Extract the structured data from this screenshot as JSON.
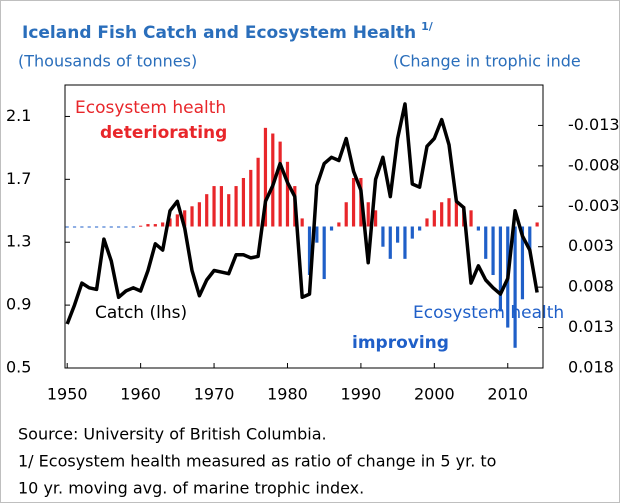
{
  "chart_data": {
    "type": "bar_line",
    "title": "Iceland Fish Catch and Ecosystem Health",
    "title_note": "1/",
    "subtitle_left": "(Thousands of tonnes)",
    "subtitle_right": "(Change in trophic inde",
    "x": [
      1950,
      1951,
      1952,
      1953,
      1954,
      1955,
      1956,
      1957,
      1958,
      1959,
      1960,
      1961,
      1962,
      1963,
      1964,
      1965,
      1966,
      1967,
      1968,
      1969,
      1970,
      1971,
      1972,
      1973,
      1974,
      1975,
      1976,
      1977,
      1978,
      1979,
      1980,
      1981,
      1982,
      1983,
      1984,
      1985,
      1986,
      1987,
      1988,
      1989,
      1990,
      1991,
      1992,
      1993,
      1994,
      1995,
      1996,
      1997,
      1998,
      1999,
      2000,
      2001,
      2002,
      2003,
      2004,
      2005,
      2006,
      2007,
      2008,
      2009,
      2010,
      2011,
      2012,
      2013,
      2014
    ],
    "series": [
      {
        "type": "bar",
        "axis": "y2",
        "color_negative": "#e8262a",
        "color_positive": "#1f5fc8",
        "values": [
          0.0001,
          0.0001,
          0.0001,
          0.0001,
          0.0001,
          0.0001,
          0.0001,
          0.0001,
          0.0001,
          0,
          -0.0001,
          -0.0003,
          -0.0003,
          -0.0005,
          -0.001,
          -0.0015,
          -0.002,
          -0.0025,
          -0.003,
          -0.004,
          -0.005,
          -0.005,
          -0.004,
          -0.005,
          -0.006,
          -0.007,
          -0.0085,
          -0.0122,
          -0.0115,
          -0.0105,
          -0.008,
          -0.005,
          -0.001,
          0.006,
          0.002,
          0.0065,
          0.0005,
          -0.0005,
          -0.003,
          -0.006,
          -0.006,
          -0.003,
          -0.002,
          0.0025,
          0.004,
          0.002,
          0.004,
          0.0015,
          0.0005,
          -0.001,
          -0.002,
          -0.003,
          -0.0035,
          -0.003,
          -0.0025,
          -0.002,
          0.0005,
          0.004,
          0.006,
          0.0105,
          0.0125,
          0.015,
          0.009,
          0.003,
          -0.0005
        ]
      },
      {
        "type": "line",
        "color": "#000000",
        "values": [
          0.78,
          0.9,
          1.04,
          1.01,
          1.0,
          1.32,
          1.18,
          0.95,
          0.99,
          1.01,
          0.99,
          1.12,
          1.29,
          1.25,
          1.5,
          1.56,
          1.39,
          1.12,
          0.96,
          1.06,
          1.12,
          1.11,
          1.1,
          1.22,
          1.22,
          1.2,
          1.21,
          1.56,
          1.66,
          1.8,
          1.68,
          1.59,
          0.95,
          0.97,
          1.66,
          1.8,
          1.84,
          1.82,
          1.96,
          1.75,
          1.63,
          1.17,
          1.7,
          1.84,
          1.59,
          1.96,
          2.18,
          1.67,
          1.65,
          1.91,
          1.96,
          2.08,
          1.92,
          1.56,
          1.52,
          1.04,
          1.15,
          1.06,
          1.01,
          0.97,
          1.07,
          1.5,
          1.34,
          1.25,
          0.98
        ]
      }
    ],
    "xlim": [
      1949.7,
      2014.8
    ],
    "xticks": [
      1950,
      1960,
      1970,
      1980,
      1990,
      2000,
      2010
    ],
    "ylim": [
      0.5,
      2.3
    ],
    "yticks": [
      0.5,
      0.9,
      1.3,
      1.7,
      2.1
    ],
    "y2lim": [
      -0.0175,
      0.0175
    ],
    "y2_inverted": true,
    "y2ticks": [
      {
        "value": -0.0125,
        "label": "-0.013"
      },
      {
        "value": -0.0075,
        "label": "-0.008"
      },
      {
        "value": -0.0025,
        "label": "-0.003"
      },
      {
        "value": 0.0025,
        "label": "0.003"
      },
      {
        "value": 0.0075,
        "label": "0.008"
      },
      {
        "value": 0.0125,
        "label": "0.013"
      },
      {
        "value": 0.0175,
        "label": "0.018"
      }
    ],
    "annotations": [
      {
        "text": "Ecosystem health",
        "color": "#e8262a",
        "bold": false
      },
      {
        "text": "deteriorating",
        "color": "#e8262a",
        "bold": true
      },
      {
        "text": "Catch (lhs)",
        "color": "#000000",
        "bold": false
      },
      {
        "text": "Ecosystem health",
        "color": "#1f5fc8",
        "bold": false
      },
      {
        "text": "improving",
        "color": "#1f5fc8",
        "bold": true
      }
    ],
    "notes": [
      "Source: University of British Columbia.",
      "1/ Ecosystem health measured as ratio of change in 5 yr. to",
      "10 yr. moving avg. of marine trophic index."
    ]
  }
}
